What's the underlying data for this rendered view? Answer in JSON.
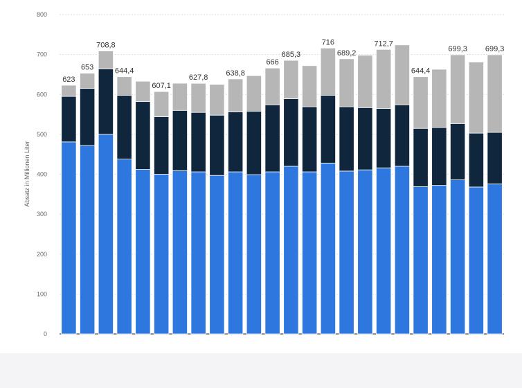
{
  "chart_data": {
    "type": "bar",
    "stacked": true,
    "ylabel": "Absatz in Millionen Liter",
    "ylim": [
      0,
      800
    ],
    "yticks": [
      0,
      100,
      200,
      300,
      400,
      500,
      600,
      700,
      800
    ],
    "grid": true,
    "colors": [
      "#2d77df",
      "#10263d",
      "#b6b6b6"
    ],
    "series": [
      {
        "values": [
          481,
          472,
          500,
          438,
          412,
          400,
          409,
          406,
          397,
          406,
          399,
          406,
          420,
          406,
          428,
          408,
          411,
          416,
          420,
          369,
          372,
          386,
          368,
          376
        ]
      },
      {
        "values": [
          114,
          143,
          164,
          160,
          170,
          144,
          151,
          149,
          151,
          150,
          159,
          168,
          169,
          163,
          170,
          161,
          156,
          149,
          154,
          146,
          145,
          141,
          135,
          129
        ]
      },
      {
        "values": [
          28,
          38,
          44.8,
          46.4,
          51,
          63.1,
          68,
          72.8,
          77,
          82.8,
          89,
          92,
          96.3,
          103,
          118,
          120.2,
          131,
          147.7,
          150,
          129.4,
          146,
          172.3,
          178,
          194.3
        ]
      }
    ],
    "totals": [
      623,
      653,
      708.8,
      644.4,
      633,
      607.1,
      628,
      627.8,
      625,
      638.8,
      647,
      666,
      685.3,
      672,
      716,
      689.2,
      698,
      712.7,
      724,
      644.4,
      663,
      699.3,
      681,
      699.3
    ],
    "total_labels": [
      "623",
      "653",
      "708,8",
      "644,4",
      "",
      "607,1",
      "",
      "627,8",
      "",
      "638,8",
      "",
      "666",
      "685,3",
      "",
      "716",
      "689,2",
      "",
      "712,7",
      "",
      "644,4",
      "",
      "699,3",
      "",
      "699,3"
    ]
  }
}
